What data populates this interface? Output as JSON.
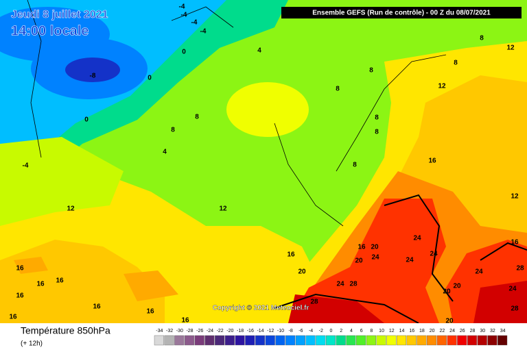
{
  "header": {
    "date": "Jeudi 8 juillet 2021",
    "time": "14:00 locale",
    "model": "Ensemble GEFS  (Run de contrôle)  -  00 Z du 08/07/2021"
  },
  "copyright": "Copyright © 2021 Meteociel.fr",
  "footer": {
    "variable": "Température 850hPa",
    "lead": "(+ 12h)"
  },
  "legend": {
    "ticks": [
      -34,
      -32,
      -30,
      -28,
      -26,
      -24,
      -22,
      -20,
      -18,
      -16,
      -14,
      -12,
      -10,
      -8,
      -6,
      -4,
      -2,
      0,
      2,
      4,
      6,
      8,
      10,
      12,
      14,
      16,
      18,
      20,
      22,
      24,
      26,
      28,
      30,
      32,
      34
    ],
    "colors": [
      "#d9d9d9",
      "#b4b4b4",
      "#9a789a",
      "#8c5a8c",
      "#7a3c7a",
      "#5f2e6e",
      "#4b2878",
      "#3c1e8c",
      "#2d14a0",
      "#1e1eb4",
      "#1432c8",
      "#0a46dc",
      "#0064f0",
      "#0082ff",
      "#00a0ff",
      "#00beff",
      "#00dcf0",
      "#00e6c8",
      "#00dc8c",
      "#28e650",
      "#50f028",
      "#8cf514",
      "#c8fa00",
      "#f0ff00",
      "#ffe600",
      "#ffc800",
      "#ffaa00",
      "#ff8c00",
      "#ff6400",
      "#ff3200",
      "#f00000",
      "#d20000",
      "#b40000",
      "#8c0000",
      "#640000"
    ]
  },
  "contour_labels": [
    -4,
    -4,
    -4,
    -4,
    0,
    0,
    0,
    -8,
    -4,
    4,
    4,
    8,
    8,
    8,
    8,
    8,
    12,
    8,
    12,
    8,
    8,
    8,
    16,
    12,
    12,
    12,
    16,
    16,
    16,
    16,
    16,
    16,
    16,
    16,
    16,
    16,
    20,
    20,
    20,
    24,
    24,
    24,
    24,
    24,
    28,
    28,
    28,
    24,
    20,
    20,
    24,
    28,
    20,
    16
  ]
}
